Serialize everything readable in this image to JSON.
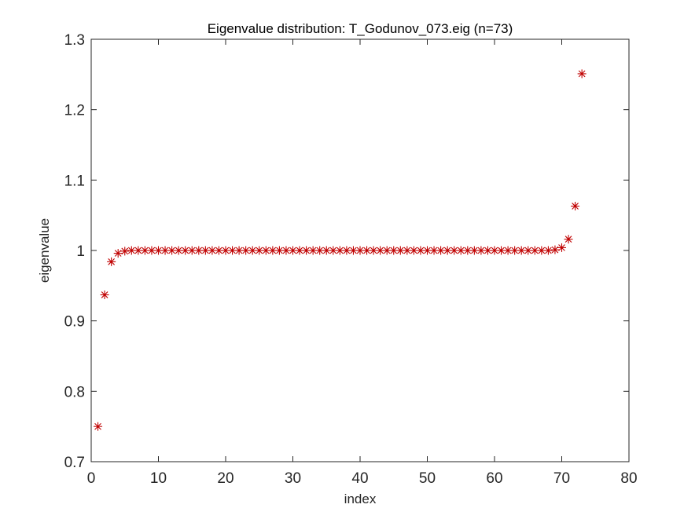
{
  "chart_data": {
    "type": "scatter",
    "title": "Eigenvalue distribution: T_Godunov_073.eig (n=73)",
    "xlabel": "index",
    "ylabel": "eigenvalue",
    "xlim": [
      0,
      80
    ],
    "ylim": [
      0.7,
      1.3
    ],
    "xticks": [
      "0",
      "10",
      "20",
      "30",
      "40",
      "50",
      "60",
      "70",
      "80"
    ],
    "yticks": [
      "0.7",
      "0.8",
      "0.9",
      "1",
      "1.1",
      "1.2",
      "1.3"
    ],
    "grid": false,
    "marker": "asterisk",
    "marker_color": "#c00000",
    "series": [
      {
        "x": [
          1,
          2,
          3,
          4,
          5,
          6,
          7,
          8,
          9,
          10,
          11,
          12,
          13,
          14,
          15,
          16,
          17,
          18,
          19,
          20,
          21,
          22,
          23,
          24,
          25,
          26,
          27,
          28,
          29,
          30,
          31,
          32,
          33,
          34,
          35,
          36,
          37,
          38,
          39,
          40,
          41,
          42,
          43,
          44,
          45,
          46,
          47,
          48,
          49,
          50,
          51,
          52,
          53,
          54,
          55,
          56,
          57,
          58,
          59,
          60,
          61,
          62,
          63,
          64,
          65,
          66,
          67,
          68,
          69,
          70,
          71,
          72,
          73
        ],
        "y": [
          0.75,
          0.937,
          0.984,
          0.996,
          0.999,
          1,
          1,
          1,
          1,
          1,
          1,
          1,
          1,
          1,
          1,
          1,
          1,
          1,
          1,
          1,
          1,
          1,
          1,
          1,
          1,
          1,
          1,
          1,
          1,
          1,
          1,
          1,
          1,
          1,
          1,
          1,
          1,
          1,
          1,
          1,
          1,
          1,
          1,
          1,
          1,
          1,
          1,
          1,
          1,
          1,
          1,
          1,
          1,
          1,
          1,
          1,
          1,
          1,
          1,
          1,
          1,
          1,
          1,
          1,
          1,
          1,
          1,
          1,
          1.001,
          1.004,
          1.016,
          1.063,
          1.251
        ]
      }
    ]
  }
}
